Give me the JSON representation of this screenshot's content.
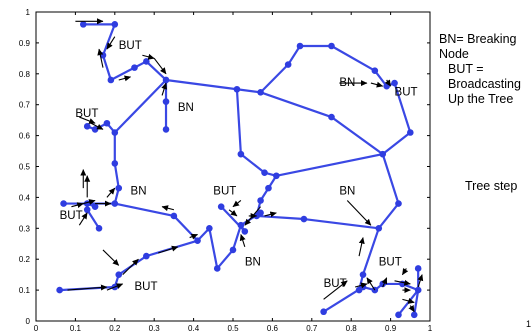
{
  "chart_data": {
    "type": "scatter",
    "title": "",
    "xlabel": "",
    "ylabel": "",
    "xlim": [
      0,
      1
    ],
    "ylim": [
      0,
      1
    ],
    "grid": false,
    "xticks": [
      "0",
      "0.1",
      "0.2",
      "0.3",
      "0.4",
      "0.5",
      "0.6",
      "0.7",
      "0.8",
      "0.9",
      "1"
    ],
    "yticks": [
      "0",
      "0.1",
      "0.2",
      "0.3",
      "0.4",
      "0.5",
      "0.6",
      "0.7",
      "0.8",
      "0.9",
      "1"
    ],
    "node_color": "#2f3de0",
    "edge_color": "#3a48e4",
    "arrow_color": "#000000",
    "nodes": [
      [
        0.12,
        0.96
      ],
      [
        0.2,
        0.96
      ],
      [
        0.17,
        0.86
      ],
      [
        0.19,
        0.78
      ],
      [
        0.25,
        0.82
      ],
      [
        0.28,
        0.84
      ],
      [
        0.33,
        0.78
      ],
      [
        0.51,
        0.75
      ],
      [
        0.57,
        0.74
      ],
      [
        0.64,
        0.83
      ],
      [
        0.67,
        0.89
      ],
      [
        0.75,
        0.89
      ],
      [
        0.86,
        0.81
      ],
      [
        0.89,
        0.76
      ],
      [
        0.91,
        0.77
      ],
      [
        0.95,
        0.61
      ],
      [
        0.88,
        0.54
      ],
      [
        0.75,
        0.66
      ],
      [
        0.92,
        0.38
      ],
      [
        0.87,
        0.3
      ],
      [
        0.68,
        0.33
      ],
      [
        0.61,
        0.47
      ],
      [
        0.59,
        0.43
      ],
      [
        0.57,
        0.39
      ],
      [
        0.56,
        0.34
      ],
      [
        0.52,
        0.54
      ],
      [
        0.58,
        0.48
      ],
      [
        0.33,
        0.62
      ],
      [
        0.33,
        0.71
      ],
      [
        0.2,
        0.61
      ],
      [
        0.18,
        0.64
      ],
      [
        0.15,
        0.62
      ],
      [
        0.13,
        0.63
      ],
      [
        0.2,
        0.51
      ],
      [
        0.21,
        0.43
      ],
      [
        0.2,
        0.38
      ],
      [
        0.13,
        0.38
      ],
      [
        0.15,
        0.37
      ],
      [
        0.07,
        0.38
      ],
      [
        0.13,
        0.36
      ],
      [
        0.16,
        0.3
      ],
      [
        0.35,
        0.34
      ],
      [
        0.41,
        0.26
      ],
      [
        0.44,
        0.3
      ],
      [
        0.46,
        0.17
      ],
      [
        0.5,
        0.23
      ],
      [
        0.52,
        0.31
      ],
      [
        0.53,
        0.29
      ],
      [
        0.47,
        0.37
      ],
      [
        0.57,
        0.35
      ],
      [
        0.28,
        0.21
      ],
      [
        0.21,
        0.15
      ],
      [
        0.2,
        0.11
      ],
      [
        0.06,
        0.1
      ],
      [
        0.83,
        0.15
      ],
      [
        0.82,
        0.1
      ],
      [
        0.83,
        0.11
      ],
      [
        0.73,
        0.03
      ],
      [
        0.86,
        0.1
      ],
      [
        0.88,
        0.12
      ],
      [
        0.93,
        0.12
      ],
      [
        0.97,
        0.1
      ],
      [
        0.97,
        0.17
      ],
      [
        0.96,
        0.02
      ],
      [
        0.92,
        0.02
      ]
    ],
    "edges": [
      [
        0,
        1
      ],
      [
        1,
        2
      ],
      [
        2,
        3
      ],
      [
        3,
        4
      ],
      [
        4,
        5
      ],
      [
        5,
        6
      ],
      [
        6,
        7
      ],
      [
        7,
        8
      ],
      [
        8,
        9
      ],
      [
        9,
        10
      ],
      [
        10,
        11
      ],
      [
        11,
        12
      ],
      [
        12,
        13
      ],
      [
        13,
        14
      ],
      [
        14,
        15
      ],
      [
        15,
        16
      ],
      [
        8,
        17
      ],
      [
        17,
        16
      ],
      [
        16,
        18
      ],
      [
        18,
        19
      ],
      [
        19,
        20
      ],
      [
        20,
        24
      ],
      [
        16,
        21
      ],
      [
        21,
        22
      ],
      [
        22,
        23
      ],
      [
        23,
        24
      ],
      [
        7,
        25
      ],
      [
        25,
        26
      ],
      [
        26,
        21
      ],
      [
        6,
        28
      ],
      [
        28,
        27
      ],
      [
        6,
        29
      ],
      [
        29,
        30
      ],
      [
        30,
        31
      ],
      [
        31,
        32
      ],
      [
        29,
        33
      ],
      [
        33,
        34
      ],
      [
        34,
        35
      ],
      [
        35,
        36
      ],
      [
        36,
        37
      ],
      [
        36,
        38
      ],
      [
        36,
        39
      ],
      [
        39,
        40
      ],
      [
        35,
        41
      ],
      [
        41,
        42
      ],
      [
        42,
        43
      ],
      [
        43,
        44
      ],
      [
        44,
        45
      ],
      [
        45,
        46
      ],
      [
        46,
        47
      ],
      [
        47,
        48
      ],
      [
        46,
        49
      ],
      [
        49,
        24
      ],
      [
        42,
        50
      ],
      [
        50,
        51
      ],
      [
        51,
        52
      ],
      [
        52,
        53
      ],
      [
        19,
        54
      ],
      [
        54,
        55
      ],
      [
        55,
        56
      ],
      [
        56,
        57
      ],
      [
        56,
        58
      ],
      [
        58,
        59
      ],
      [
        59,
        60
      ],
      [
        60,
        61
      ],
      [
        61,
        62
      ],
      [
        61,
        63
      ],
      [
        61,
        64
      ]
    ],
    "arrows": [
      [
        0.1,
        0.97,
        0.17,
        0.97
      ],
      [
        0.2,
        0.92,
        0.18,
        0.88
      ],
      [
        0.17,
        0.82,
        0.16,
        0.88
      ],
      [
        0.21,
        0.78,
        0.24,
        0.79
      ],
      [
        0.27,
        0.86,
        0.3,
        0.85
      ],
      [
        0.3,
        0.85,
        0.33,
        0.8
      ],
      [
        0.32,
        0.73,
        0.33,
        0.77
      ],
      [
        0.11,
        0.66,
        0.15,
        0.64
      ],
      [
        0.14,
        0.64,
        0.17,
        0.62
      ],
      [
        0.12,
        0.43,
        0.12,
        0.49
      ],
      [
        0.13,
        0.4,
        0.13,
        0.47
      ],
      [
        0.09,
        0.37,
        0.12,
        0.38
      ],
      [
        0.11,
        0.31,
        0.13,
        0.35
      ],
      [
        0.15,
        0.38,
        0.19,
        0.38
      ],
      [
        0.18,
        0.4,
        0.2,
        0.43
      ],
      [
        0.12,
        0.38,
        0.15,
        0.39
      ],
      [
        0.35,
        0.36,
        0.32,
        0.37
      ],
      [
        0.52,
        0.39,
        0.5,
        0.37
      ],
      [
        0.54,
        0.34,
        0.56,
        0.34
      ],
      [
        0.58,
        0.34,
        0.61,
        0.35
      ],
      [
        0.57,
        0.37,
        0.53,
        0.31
      ],
      [
        0.49,
        0.36,
        0.51,
        0.34
      ],
      [
        0.53,
        0.24,
        0.52,
        0.28
      ],
      [
        0.79,
        0.39,
        0.85,
        0.31
      ],
      [
        0.82,
        0.21,
        0.83,
        0.27
      ],
      [
        0.73,
        0.07,
        0.79,
        0.13
      ],
      [
        0.81,
        0.11,
        0.84,
        0.12
      ],
      [
        0.86,
        0.1,
        0.84,
        0.14
      ],
      [
        0.88,
        0.11,
        0.89,
        0.14
      ],
      [
        0.91,
        0.13,
        0.95,
        0.12
      ],
      [
        0.97,
        0.11,
        0.98,
        0.15
      ],
      [
        0.94,
        0.17,
        0.93,
        0.15
      ],
      [
        0.93,
        0.1,
        0.95,
        0.1
      ],
      [
        0.93,
        0.07,
        0.96,
        0.06
      ],
      [
        0.95,
        0.05,
        0.96,
        0.03
      ],
      [
        0.18,
        0.1,
        0.22,
        0.12
      ],
      [
        0.08,
        0.1,
        0.18,
        0.11
      ],
      [
        0.22,
        0.15,
        0.26,
        0.2
      ],
      [
        0.31,
        0.22,
        0.36,
        0.24
      ],
      [
        0.39,
        0.27,
        0.41,
        0.28
      ],
      [
        0.17,
        0.23,
        0.21,
        0.18
      ],
      [
        0.85,
        0.77,
        0.88,
        0.76
      ],
      [
        0.89,
        0.78,
        0.9,
        0.76
      ],
      [
        0.77,
        0.77,
        0.84,
        0.77
      ]
    ],
    "annotations": [
      {
        "text": "BUT",
        "x": 0.21,
        "y": 0.88
      },
      {
        "text": "BUT",
        "x": 0.1,
        "y": 0.66
      },
      {
        "text": "BN",
        "x": 0.36,
        "y": 0.68
      },
      {
        "text": "BN",
        "x": 0.24,
        "y": 0.41
      },
      {
        "text": "BUT",
        "x": 0.06,
        "y": 0.33
      },
      {
        "text": "BUT",
        "x": 0.45,
        "y": 0.41
      },
      {
        "text": "BN",
        "x": 0.53,
        "y": 0.18
      },
      {
        "text": "BN",
        "x": 0.77,
        "y": 0.41
      },
      {
        "text": "BN",
        "x": 0.77,
        "y": 0.76
      },
      {
        "text": "BUT",
        "x": 0.91,
        "y": 0.73
      },
      {
        "text": "BUT",
        "x": 0.25,
        "y": 0.1
      },
      {
        "text": "BUT",
        "x": 0.73,
        "y": 0.11
      },
      {
        "text": "BUT",
        "x": 0.87,
        "y": 0.18
      }
    ]
  },
  "legend": {
    "line1": "BN= Breaking",
    "line2": "Node",
    "line3": "BUT =",
    "line4": "Broadcasting",
    "line5": "Up the Tree"
  },
  "tree_step": "Tree step",
  "page_number": "1"
}
